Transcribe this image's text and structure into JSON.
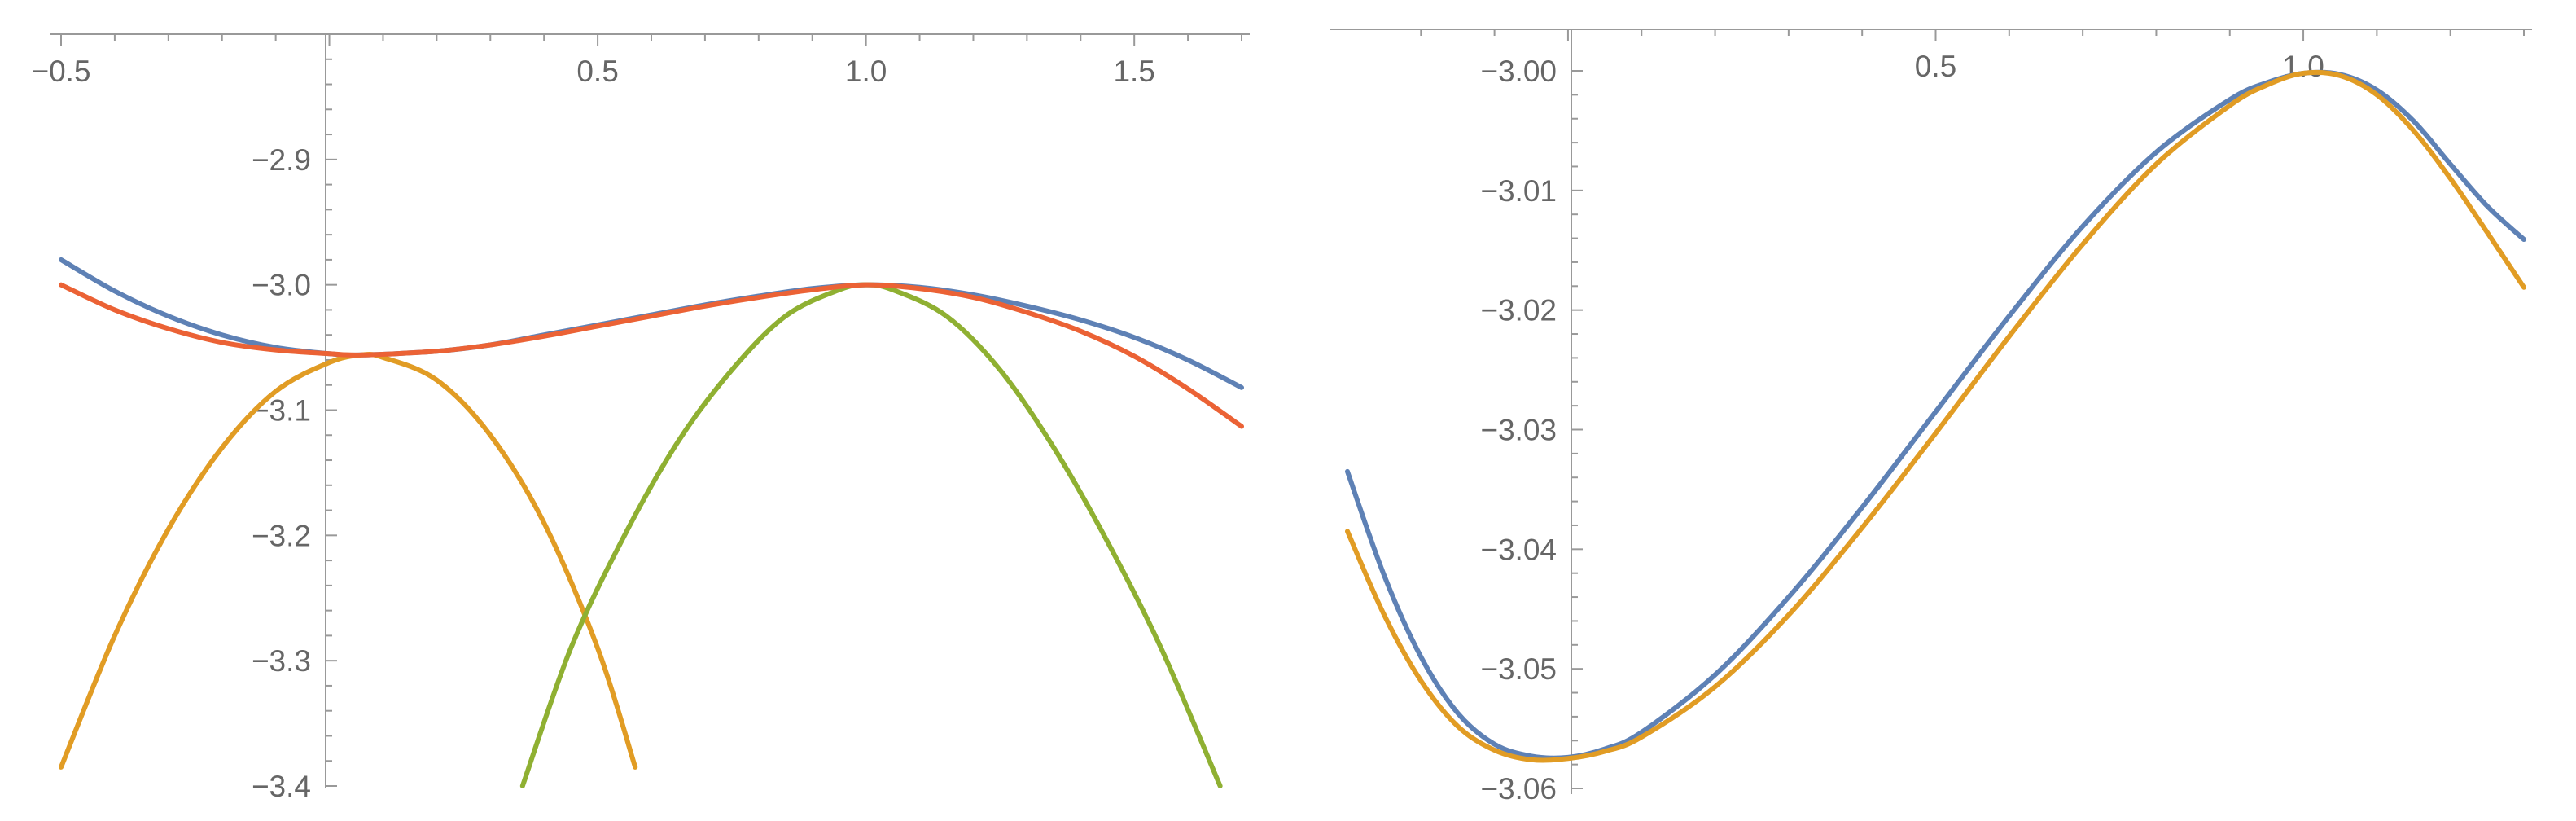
{
  "chart_data": [
    {
      "type": "line",
      "title": "",
      "xlabel": "",
      "ylabel": "",
      "xlim": [
        -0.5,
        1.7
      ],
      "ylim": [
        -3.4,
        -2.8
      ],
      "grid": false,
      "legend": "none",
      "x_ticks": [
        -0.5,
        0.5,
        1.0,
        1.5
      ],
      "x_tick_labels": [
        "−0.5",
        "0.5",
        "1.0",
        "1.5"
      ],
      "y_ticks": [
        -2.9,
        -3.0,
        -3.1,
        -3.2,
        -3.3,
        -3.4
      ],
      "y_tick_labels": [
        "−2.9",
        "−3.0",
        "−3.1",
        "−3.2",
        "−3.3",
        "−3.4"
      ],
      "series": [
        {
          "color": "#5e81b5",
          "x": [
            -0.5,
            -0.4,
            -0.3,
            -0.2,
            -0.1,
            0.0,
            0.06,
            0.2,
            0.3,
            0.4,
            0.5,
            0.6,
            0.7,
            0.8,
            0.9,
            1.0,
            1.1,
            1.2,
            1.3,
            1.4,
            1.5,
            1.6,
            1.7
          ],
          "y": [
            -2.98,
            -3.005,
            -3.025,
            -3.04,
            -3.05,
            -3.055,
            -3.056,
            -3.053,
            -3.048,
            -3.04,
            -3.032,
            -3.024,
            -3.016,
            -3.009,
            -3.003,
            -3.0,
            -3.002,
            -3.008,
            -3.017,
            -3.028,
            -3.042,
            -3.06,
            -3.082
          ]
        },
        {
          "color": "#e19c24",
          "x": [
            -0.5,
            -0.4,
            -0.3,
            -0.2,
            -0.1,
            0.0,
            0.06,
            0.1,
            0.2,
            0.3,
            0.4,
            0.5,
            0.57
          ],
          "y": [
            -3.385,
            -3.28,
            -3.195,
            -3.13,
            -3.085,
            -3.062,
            -3.056,
            -3.058,
            -3.076,
            -3.12,
            -3.19,
            -3.29,
            -3.385
          ]
        },
        {
          "color": "#8fb032",
          "x": [
            0.36,
            0.45,
            0.55,
            0.65,
            0.75,
            0.85,
            0.95,
            1.0,
            1.05,
            1.15,
            1.25,
            1.35,
            1.45,
            1.55,
            1.66
          ],
          "y": [
            -3.4,
            -3.29,
            -3.2,
            -3.125,
            -3.068,
            -3.025,
            -3.004,
            -3.0,
            -3.004,
            -3.025,
            -3.068,
            -3.13,
            -3.205,
            -3.29,
            -3.4
          ]
        },
        {
          "color": "#eb6235",
          "x": [
            -0.5,
            -0.4,
            -0.3,
            -0.2,
            -0.1,
            0.0,
            0.06,
            0.2,
            0.3,
            0.4,
            0.5,
            0.6,
            0.7,
            0.8,
            0.9,
            1.0,
            1.1,
            1.2,
            1.3,
            1.4,
            1.5,
            1.6,
            1.7
          ],
          "y": [
            -3.0,
            -3.02,
            -3.035,
            -3.046,
            -3.052,
            -3.055,
            -3.056,
            -3.053,
            -3.048,
            -3.041,
            -3.033,
            -3.025,
            -3.017,
            -3.01,
            -3.004,
            -3.0,
            -3.003,
            -3.01,
            -3.022,
            -3.037,
            -3.057,
            -3.083,
            -3.113
          ]
        }
      ]
    },
    {
      "type": "line",
      "title": "",
      "xlabel": "",
      "ylabel": "",
      "xlim": [
        -0.3,
        1.3
      ],
      "ylim": [
        -3.06,
        -2.995
      ],
      "grid": false,
      "legend": "none",
      "x_ticks": [
        0.5,
        1.0
      ],
      "x_tick_labels": [
        "0.5",
        "1.0"
      ],
      "y_ticks": [
        -3.0,
        -3.01,
        -3.02,
        -3.03,
        -3.04,
        -3.05,
        -3.06
      ],
      "y_tick_labels": [
        "−3.00",
        "−3.01",
        "−3.02",
        "−3.03",
        "−3.04",
        "−3.05",
        "−3.06"
      ],
      "series": [
        {
          "color": "#5e81b5",
          "x": [
            -0.3,
            -0.25,
            -0.2,
            -0.15,
            -0.1,
            -0.05,
            0.0,
            0.05,
            0.1,
            0.2,
            0.3,
            0.4,
            0.5,
            0.6,
            0.7,
            0.8,
            0.9,
            0.95,
            1.0,
            1.05,
            1.1,
            1.15,
            1.2,
            1.25,
            1.3
          ],
          "y": [
            -3.0335,
            -3.0422,
            -3.049,
            -3.0537,
            -3.0563,
            -3.0573,
            -3.0574,
            -3.0567,
            -3.0553,
            -3.0505,
            -3.044,
            -3.0365,
            -3.0285,
            -3.0205,
            -3.013,
            -3.0068,
            -3.0024,
            -3.001,
            -3.0002,
            -3.0003,
            -3.0016,
            -3.0042,
            -3.0078,
            -3.0113,
            -3.0141
          ]
        },
        {
          "color": "#e19c24",
          "x": [
            -0.3,
            -0.25,
            -0.2,
            -0.15,
            -0.1,
            -0.05,
            0.0,
            0.05,
            0.1,
            0.2,
            0.3,
            0.4,
            0.5,
            0.6,
            0.7,
            0.8,
            0.9,
            0.95,
            1.0,
            1.05,
            1.1,
            1.15,
            1.2,
            1.25,
            1.3
          ],
          "y": [
            -3.0385,
            -3.0455,
            -3.051,
            -3.0548,
            -3.0568,
            -3.0576,
            -3.0575,
            -3.0569,
            -3.0557,
            -3.0515,
            -3.0455,
            -3.0382,
            -3.0303,
            -3.0222,
            -3.0145,
            -3.0078,
            -3.0029,
            -3.0012,
            -3.0002,
            -3.0004,
            -3.002,
            -3.005,
            -3.009,
            -3.0135,
            -3.0181
          ]
        }
      ]
    }
  ]
}
